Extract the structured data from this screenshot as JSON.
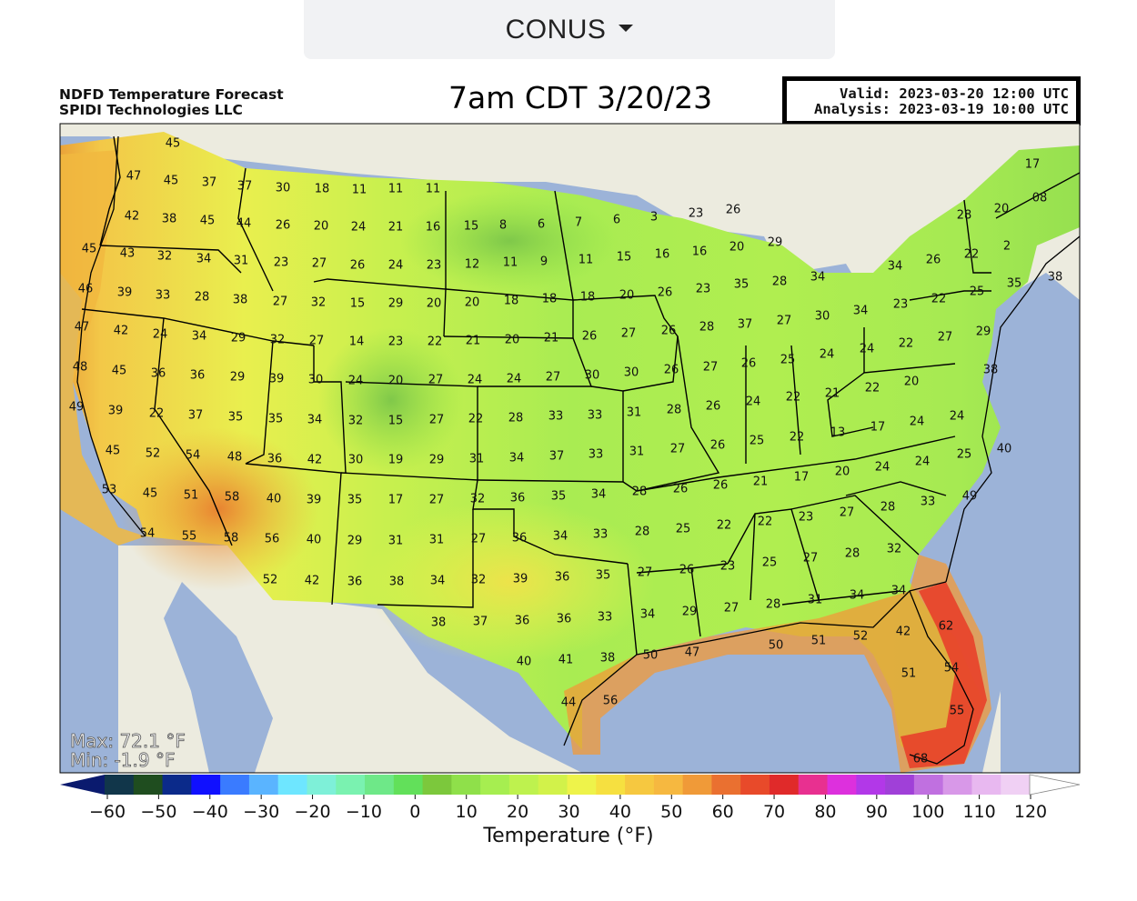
{
  "region_selector": {
    "label": "CONUS"
  },
  "header": {
    "product_line1": "NDFD Temperature Forecast",
    "product_line2": "SPIDI Technologies LLC",
    "title": "7am CDT 3/20/23",
    "valid": "Valid: 2023-03-20 12:00 UTC",
    "analysis": "Analysis: 2023-03-19 10:00 UTC"
  },
  "stats": {
    "max": "Max: 72.1 °F",
    "min": "Min: -1.9 °F"
  },
  "colorbar": {
    "label": "Temperature (°F)",
    "ticks": [
      "−60",
      "−50",
      "−40",
      "−30",
      "−20",
      "−10",
      "0",
      "10",
      "20",
      "30",
      "40",
      "50",
      "60",
      "70",
      "80",
      "90",
      "100",
      "110",
      "120"
    ],
    "colors": [
      "#0a1a6e",
      "#11364a",
      "#1f4d1f",
      "#0b2a8a",
      "#1010ff",
      "#3a7bff",
      "#5ab4ff",
      "#6ee6ff",
      "#7ef0d8",
      "#7af2b0",
      "#6ee888",
      "#62e05a",
      "#7cc83c",
      "#8fe04a",
      "#a6ee50",
      "#bef24e",
      "#d2f24a",
      "#eef34a",
      "#f6e040",
      "#f6c840",
      "#f6b840",
      "#f09a38",
      "#ea7030",
      "#e84a2a",
      "#e02a2a",
      "#e83090",
      "#dd30dd",
      "#b238e8",
      "#a040d8",
      "#c070e0",
      "#d898e8",
      "#e8b8f0",
      "#f0d0f4",
      "#ffffff"
    ]
  },
  "map_data": {
    "city_values": [
      [
        "45",
        190,
        158
      ],
      [
        "47",
        147,
        194
      ],
      [
        "45",
        188,
        199
      ],
      [
        "37",
        230,
        201
      ],
      [
        "37",
        269,
        205
      ],
      [
        "30",
        311,
        207
      ],
      [
        "18",
        354,
        208
      ],
      [
        "11",
        395,
        209
      ],
      [
        "11",
        435,
        208
      ],
      [
        "11",
        476,
        208
      ],
      [
        "42",
        145,
        238
      ],
      [
        "38",
        186,
        241
      ],
      [
        "45",
        228,
        243
      ],
      [
        "44",
        268,
        246
      ],
      [
        "26",
        311,
        248
      ],
      [
        "20",
        353,
        249
      ],
      [
        "24",
        394,
        250
      ],
      [
        "21",
        435,
        250
      ],
      [
        "16",
        476,
        250
      ],
      [
        "15",
        518,
        249
      ],
      [
        "8",
        553,
        248
      ],
      [
        "6",
        595,
        247
      ],
      [
        "7",
        636,
        245
      ],
      [
        "6",
        678,
        242
      ],
      [
        "3",
        719,
        239
      ],
      [
        "23",
        765,
        235
      ],
      [
        "26",
        806,
        231
      ],
      [
        "45",
        98,
        274
      ],
      [
        "43",
        140,
        279
      ],
      [
        "32",
        181,
        282
      ],
      [
        "34",
        224,
        285
      ],
      [
        "31",
        265,
        287
      ],
      [
        "23",
        309,
        289
      ],
      [
        "27",
        351,
        290
      ],
      [
        "26",
        393,
        292
      ],
      [
        "24",
        435,
        292
      ],
      [
        "23",
        477,
        292
      ],
      [
        "12",
        519,
        291
      ],
      [
        "11",
        561,
        289
      ],
      [
        "9",
        598,
        288
      ],
      [
        "11",
        644,
        286
      ],
      [
        "15",
        686,
        283
      ],
      [
        "16",
        728,
        280
      ],
      [
        "16",
        769,
        277
      ],
      [
        "20",
        810,
        272
      ],
      [
        "29",
        852,
        267
      ],
      [
        "17",
        1135,
        181
      ],
      [
        "46",
        94,
        318
      ],
      [
        "39",
        137,
        322
      ],
      [
        "33",
        179,
        325
      ],
      [
        "28",
        222,
        327
      ],
      [
        "38",
        264,
        330
      ],
      [
        "27",
        308,
        332
      ],
      [
        "32",
        350,
        333
      ],
      [
        "15",
        393,
        334
      ],
      [
        "29",
        435,
        334
      ],
      [
        "20",
        477,
        334
      ],
      [
        "20",
        519,
        333
      ],
      [
        "18",
        562,
        331
      ],
      [
        "18",
        604,
        329
      ],
      [
        "18",
        646,
        327
      ],
      [
        "20",
        689,
        325
      ],
      [
        "26",
        731,
        322
      ],
      [
        "23",
        773,
        318
      ],
      [
        "35",
        815,
        313
      ],
      [
        "28",
        857,
        310
      ],
      [
        "34",
        899,
        305
      ],
      [
        "28",
        1060,
        237
      ],
      [
        "20",
        1101,
        230
      ],
      [
        "08",
        1143,
        218
      ],
      [
        "34",
        984,
        293
      ],
      [
        "26",
        1026,
        286
      ],
      [
        "22",
        1068,
        280
      ],
      [
        "2",
        1107,
        271
      ],
      [
        "47",
        90,
        360
      ],
      [
        "42",
        133,
        364
      ],
      [
        "24",
        176,
        368
      ],
      [
        "34",
        219,
        370
      ],
      [
        "29",
        262,
        372
      ],
      [
        "32",
        305,
        374
      ],
      [
        "27",
        348,
        375
      ],
      [
        "14",
        392,
        376
      ],
      [
        "23",
        435,
        376
      ],
      [
        "22",
        478,
        376
      ],
      [
        "21",
        520,
        375
      ],
      [
        "20",
        563,
        374
      ],
      [
        "21",
        606,
        372
      ],
      [
        "26",
        648,
        370
      ],
      [
        "27",
        691,
        367
      ],
      [
        "26",
        735,
        364
      ],
      [
        "28",
        777,
        360
      ],
      [
        "37",
        819,
        357
      ],
      [
        "27",
        862,
        353
      ],
      [
        "30",
        904,
        348
      ],
      [
        "34",
        946,
        342
      ],
      [
        "23",
        990,
        335
      ],
      [
        "22",
        1032,
        329
      ],
      [
        "25",
        1074,
        321
      ],
      [
        "35",
        1115,
        312
      ],
      [
        "38",
        1160,
        305
      ],
      [
        "48",
        88,
        404
      ],
      [
        "45",
        131,
        408
      ],
      [
        "36",
        174,
        411
      ],
      [
        "36",
        217,
        413
      ],
      [
        "29",
        261,
        415
      ],
      [
        "39",
        304,
        417
      ],
      [
        "30",
        347,
        418
      ],
      [
        "24",
        391,
        419
      ],
      [
        "20",
        435,
        419
      ],
      [
        "27",
        479,
        418
      ],
      [
        "24",
        522,
        418
      ],
      [
        "24",
        565,
        417
      ],
      [
        "27",
        608,
        415
      ],
      [
        "30",
        651,
        413
      ],
      [
        "30",
        694,
        410
      ],
      [
        "26",
        738,
        407
      ],
      [
        "27",
        781,
        404
      ],
      [
        "26",
        823,
        400
      ],
      [
        "25",
        866,
        396
      ],
      [
        "24",
        909,
        390
      ],
      [
        "24",
        953,
        384
      ],
      [
        "22",
        996,
        378
      ],
      [
        "27",
        1039,
        371
      ],
      [
        "29",
        1081,
        365
      ],
      [
        "38",
        1089,
        407
      ],
      [
        "49",
        84,
        448
      ],
      [
        "39",
        127,
        452
      ],
      [
        "22",
        172,
        455
      ],
      [
        "37",
        215,
        457
      ],
      [
        "35",
        259,
        459
      ],
      [
        "35",
        303,
        461
      ],
      [
        "34",
        346,
        462
      ],
      [
        "32",
        391,
        463
      ],
      [
        "15",
        435,
        463
      ],
      [
        "27",
        480,
        462
      ],
      [
        "22",
        523,
        461
      ],
      [
        "28",
        567,
        460
      ],
      [
        "33",
        611,
        458
      ],
      [
        "33",
        654,
        457
      ],
      [
        "31",
        697,
        454
      ],
      [
        "28",
        741,
        451
      ],
      [
        "26",
        784,
        447
      ],
      [
        "24",
        828,
        442
      ],
      [
        "22",
        872,
        437
      ],
      [
        "21",
        915,
        433
      ],
      [
        "22",
        959,
        427
      ],
      [
        "20",
        1002,
        420
      ],
      [
        "45",
        124,
        496
      ],
      [
        "52",
        168,
        499
      ],
      [
        "54",
        212,
        501
      ],
      [
        "48",
        258,
        503
      ],
      [
        "36",
        302,
        505
      ],
      [
        "42",
        346,
        506
      ],
      [
        "30",
        391,
        506
      ],
      [
        "19",
        435,
        506
      ],
      [
        "29",
        480,
        506
      ],
      [
        "31",
        524,
        505
      ],
      [
        "34",
        568,
        504
      ],
      [
        "37",
        612,
        502
      ],
      [
        "33",
        655,
        500
      ],
      [
        "31",
        700,
        497
      ],
      [
        "27",
        745,
        494
      ],
      [
        "26",
        789,
        490
      ],
      [
        "25",
        832,
        485
      ],
      [
        "22",
        876,
        481
      ],
      [
        "13",
        921,
        476
      ],
      [
        "17",
        965,
        470
      ],
      [
        "24",
        1008,
        464
      ],
      [
        "24",
        1052,
        458
      ],
      [
        "25",
        1060,
        500
      ],
      [
        "40",
        1104,
        494
      ],
      [
        "53",
        120,
        539
      ],
      [
        "45",
        165,
        543
      ],
      [
        "51",
        210,
        545
      ],
      [
        "58",
        255,
        547
      ],
      [
        "40",
        301,
        549
      ],
      [
        "39",
        345,
        550
      ],
      [
        "35",
        390,
        550
      ],
      [
        "17",
        435,
        550
      ],
      [
        "27",
        480,
        550
      ],
      [
        "32",
        525,
        549
      ],
      [
        "36",
        569,
        548
      ],
      [
        "35",
        614,
        546
      ],
      [
        "34",
        658,
        544
      ],
      [
        "28",
        703,
        541
      ],
      [
        "26",
        748,
        538
      ],
      [
        "26",
        792,
        534
      ],
      [
        "21",
        836,
        530
      ],
      [
        "17",
        881,
        525
      ],
      [
        "20",
        926,
        519
      ],
      [
        "24",
        970,
        514
      ],
      [
        "24",
        1014,
        508
      ],
      [
        "49",
        1066,
        546
      ],
      [
        "54",
        162,
        587
      ],
      [
        "55",
        208,
        590
      ],
      [
        "58",
        254,
        592
      ],
      [
        "56",
        299,
        593
      ],
      [
        "40",
        345,
        594
      ],
      [
        "29",
        390,
        595
      ],
      [
        "31",
        435,
        595
      ],
      [
        "31",
        480,
        594
      ],
      [
        "27",
        526,
        593
      ],
      [
        "36",
        571,
        592
      ],
      [
        "34",
        616,
        590
      ],
      [
        "33",
        660,
        588
      ],
      [
        "28",
        706,
        585
      ],
      [
        "25",
        751,
        582
      ],
      [
        "22",
        796,
        578
      ],
      [
        "22",
        841,
        574
      ],
      [
        "23",
        886,
        569
      ],
      [
        "27",
        931,
        564
      ],
      [
        "28",
        976,
        558
      ],
      [
        "33",
        1020,
        552
      ],
      [
        "52",
        297,
        638
      ],
      [
        "42",
        343,
        639
      ],
      [
        "36",
        390,
        640
      ],
      [
        "38",
        436,
        640
      ],
      [
        "34",
        481,
        639
      ],
      [
        "32",
        526,
        638
      ],
      [
        "39",
        572,
        637
      ],
      [
        "36",
        618,
        635
      ],
      [
        "35",
        663,
        633
      ],
      [
        "27",
        709,
        630
      ],
      [
        "26",
        755,
        627
      ],
      [
        "23",
        800,
        623
      ],
      [
        "25",
        846,
        619
      ],
      [
        "27",
        891,
        614
      ],
      [
        "28",
        937,
        609
      ],
      [
        "32",
        983,
        604
      ],
      [
        "38",
        482,
        685
      ],
      [
        "37",
        528,
        684
      ],
      [
        "36",
        574,
        683
      ],
      [
        "36",
        620,
        681
      ],
      [
        "33",
        665,
        679
      ],
      [
        "34",
        712,
        676
      ],
      [
        "29",
        758,
        673
      ],
      [
        "27",
        804,
        669
      ],
      [
        "28",
        850,
        665
      ],
      [
        "31",
        896,
        660
      ],
      [
        "34",
        942,
        655
      ],
      [
        "34",
        988,
        650
      ],
      [
        "62",
        1040,
        689
      ],
      [
        "40",
        576,
        728
      ],
      [
        "41",
        622,
        726
      ],
      [
        "38",
        668,
        724
      ],
      [
        "50",
        715,
        721
      ],
      [
        "47",
        761,
        718
      ],
      [
        "50",
        853,
        710
      ],
      [
        "51",
        900,
        705
      ],
      [
        "52",
        946,
        700
      ],
      [
        "42",
        993,
        695
      ],
      [
        "51",
        999,
        741
      ],
      [
        "54",
        1046,
        735
      ],
      [
        "44",
        625,
        773
      ],
      [
        "56",
        671,
        771
      ],
      [
        "55",
        1052,
        782
      ],
      [
        "68",
        1012,
        835
      ]
    ]
  }
}
